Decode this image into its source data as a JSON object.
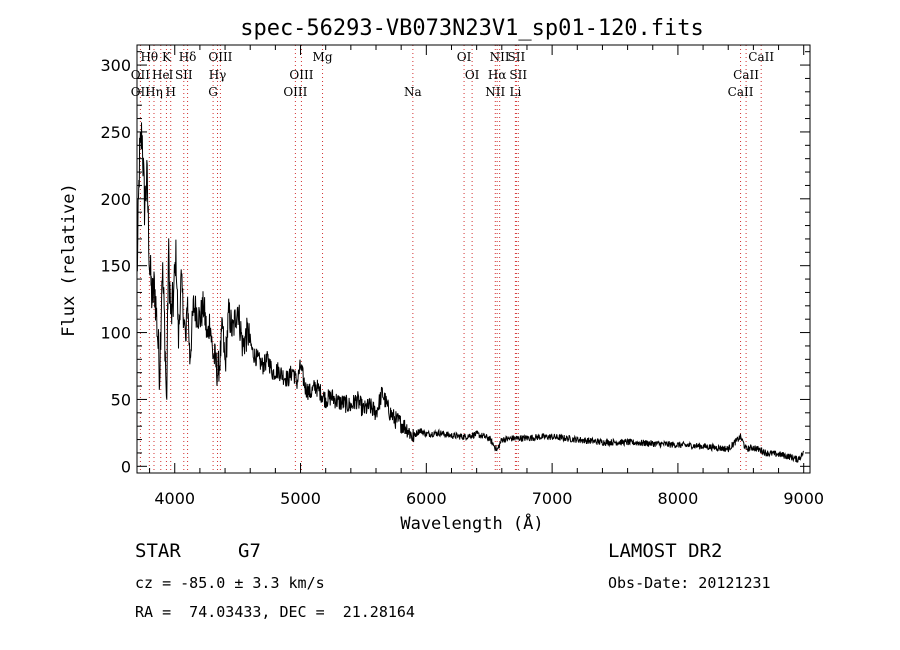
{
  "chart_data": {
    "type": "line",
    "title": "spec-56293-VB073N23V1_sp01-120.fits",
    "xlabel": "Wavelength (Å)",
    "ylabel": "Flux (relative)",
    "xlim": [
      3700,
      9050
    ],
    "ylim": [
      -5,
      315
    ],
    "xticks": [
      4000,
      5000,
      6000,
      7000,
      8000,
      9000
    ],
    "yticks": [
      0,
      50,
      100,
      150,
      200,
      250,
      300
    ],
    "series": [
      {
        "name": "flux",
        "x": [
          3700,
          3720,
          3740,
          3760,
          3780,
          3800,
          3820,
          3840,
          3860,
          3880,
          3900,
          3920,
          3935,
          3950,
          3970,
          3990,
          4010,
          4030,
          4050,
          4070,
          4090,
          4100,
          4120,
          4150,
          4180,
          4200,
          4230,
          4260,
          4280,
          4300,
          4320,
          4340,
          4360,
          4380,
          4400,
          4430,
          4460,
          4500,
          4540,
          4580,
          4620,
          4660,
          4700,
          4740,
          4780,
          4820,
          4860,
          4900,
          4940,
          4970,
          5000,
          5040,
          5080,
          5120,
          5160,
          5200,
          5250,
          5300,
          5350,
          5400,
          5450,
          5500,
          5550,
          5600,
          5650,
          5700,
          5750,
          5800,
          5850,
          5890,
          5950,
          6000,
          6100,
          6200,
          6300,
          6400,
          6500,
          6563,
          6600,
          6700,
          6800,
          6900,
          7000,
          7200,
          7400,
          7600,
          7800,
          8000,
          8200,
          8400,
          8498,
          8542,
          8600,
          8662,
          8700,
          8800,
          8900,
          8950,
          9000
        ],
        "values": [
          140,
          230,
          250,
          195,
          215,
          150,
          125,
          135,
          105,
          70,
          150,
          105,
          42,
          160,
          110,
          125,
          160,
          95,
          140,
          115,
          90,
          130,
          80,
          120,
          115,
          110,
          120,
          95,
          110,
          85,
          80,
          70,
          80,
          105,
          75,
          115,
          100,
          120,
          90,
          100,
          85,
          80,
          75,
          80,
          70,
          72,
          68,
          65,
          72,
          62,
          75,
          58,
          55,
          60,
          55,
          50,
          52,
          48,
          47,
          45,
          50,
          42,
          45,
          40,
          55,
          42,
          35,
          32,
          28,
          22,
          27,
          24,
          25,
          23,
          22,
          24,
          21,
          12,
          20,
          21,
          21,
          22,
          22,
          20,
          18,
          18,
          17,
          16,
          15,
          13,
          22,
          13,
          14,
          12,
          10,
          9,
          7,
          5,
          10
        ]
      }
    ],
    "line_groups": [
      {
        "row": 1,
        "labels": [
          {
            "text": "Hθ",
            "wavelength": 3798
          },
          {
            "text": "K",
            "wavelength": 3934
          },
          {
            "text": "Hδ",
            "wavelength": 4102
          },
          {
            "text": "OIII",
            "wavelength": 4363
          },
          {
            "text": "Mg",
            "wavelength": 5175
          },
          {
            "text": "OI",
            "wavelength": 6300
          },
          {
            "text": "NII",
            "wavelength": 6583
          },
          {
            "text": "SII",
            "wavelength": 6716
          },
          {
            "text": "CaII",
            "wavelength": 8662
          }
        ]
      },
      {
        "row": 2,
        "labels": [
          {
            "text": "OII",
            "wavelength": 3727
          },
          {
            "text": "He",
            "wavelength": 3889
          },
          {
            "text": "I",
            "wavelength": 3970
          },
          {
            "text": "SII",
            "wavelength": 4072
          },
          {
            "text": "Hγ",
            "wavelength": 4340
          },
          {
            "text": "OIII",
            "wavelength": 5007
          },
          {
            "text": "OI",
            "wavelength": 6364
          },
          {
            "text": "Hα",
            "wavelength": 6563
          },
          {
            "text": "SII",
            "wavelength": 6731
          },
          {
            "text": "CaII",
            "wavelength": 8542
          }
        ]
      },
      {
        "row": 3,
        "labels": [
          {
            "text": "OII",
            "wavelength": 3727
          },
          {
            "text": "Hη",
            "wavelength": 3835
          },
          {
            "text": "H",
            "wavelength": 3968
          },
          {
            "text": "G",
            "wavelength": 4305
          },
          {
            "text": "OIII",
            "wavelength": 4959
          },
          {
            "text": "Na",
            "wavelength": 5893
          },
          {
            "text": "NII",
            "wavelength": 6548
          },
          {
            "text": "Li",
            "wavelength": 6708
          },
          {
            "text": "CaII",
            "wavelength": 8498
          }
        ]
      }
    ],
    "line_marker_wavelengths": [
      3727,
      3798,
      3835,
      3889,
      3934,
      3968,
      4072,
      4102,
      4305,
      4340,
      4363,
      4959,
      5007,
      5175,
      5893,
      6300,
      6364,
      6548,
      6563,
      6583,
      6708,
      6716,
      6731,
      8498,
      8542,
      8662
    ],
    "colors": {
      "axis": "#000000",
      "data": "#000000",
      "line_marker": "#d23030"
    }
  },
  "info": {
    "object_class": "STAR",
    "subclass": "G7",
    "survey": "LAMOST DR2",
    "cz": "cz = -85.0 ± 3.3 km/s",
    "obs_date": "Obs-Date: 20121231",
    "coords": "RA =  74.03433, DEC =  21.28164"
  }
}
